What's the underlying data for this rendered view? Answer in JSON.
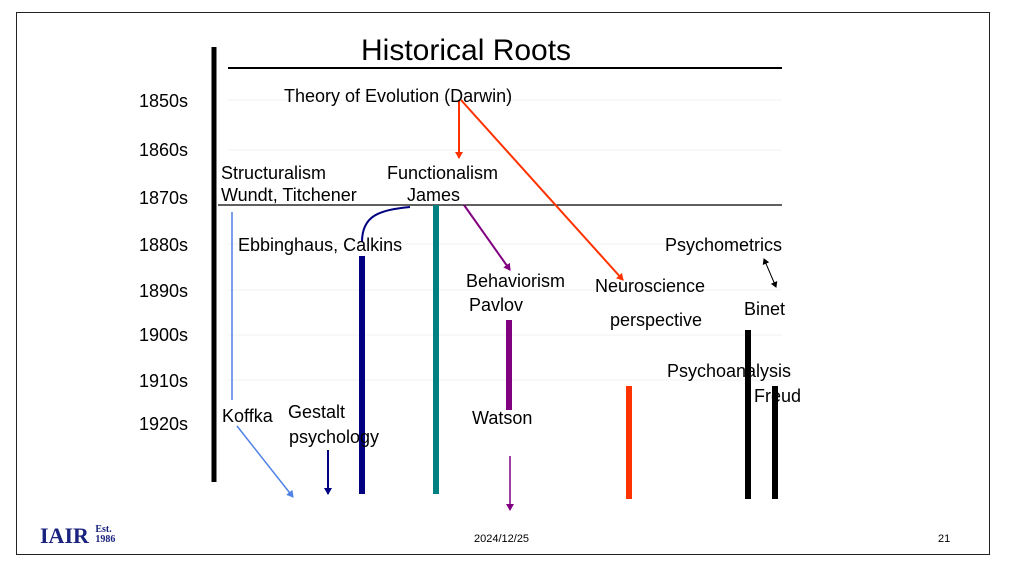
{
  "slide": {
    "title": "Historical Roots",
    "date": "2024/12/25",
    "page_number": "21",
    "logo_text": "IAIR",
    "logo_est": "Est.",
    "logo_year": "1986"
  },
  "timeline": {
    "years": [
      "1850s",
      "1860s",
      "1870s",
      "1880s",
      "1890s",
      "1900s",
      "1910s",
      "1920s"
    ]
  },
  "labels": {
    "darwin": "Theory of Evolution (Darwin)",
    "structuralism": "Structuralism",
    "wundt": "Wundt, Titchener",
    "functionalism": "Functionalism",
    "james": "James",
    "ebbinghaus": "Ebbinghaus, Calkins",
    "psychometrics": "Psychometrics",
    "behaviorism": "Behaviorism",
    "pavlov": "Pavlov",
    "neuroscience": "Neuroscience",
    "perspective": "perspective",
    "binet": "Binet",
    "psychoanalysis": "Psychoanalysis",
    "freud": "Freud",
    "koffka": "Koffka",
    "gestalt": "Gestalt",
    "psychology": "psychology",
    "watson": "Watson"
  },
  "colors": {
    "structuralism_line": "#4f81e6",
    "ebbinghaus_bar": "#000080",
    "functionalism_bar": "#008080",
    "behaviorism_bar": "#800080",
    "neuroscience": "#ff3300",
    "psychoanalysis_bar": "#000000"
  }
}
